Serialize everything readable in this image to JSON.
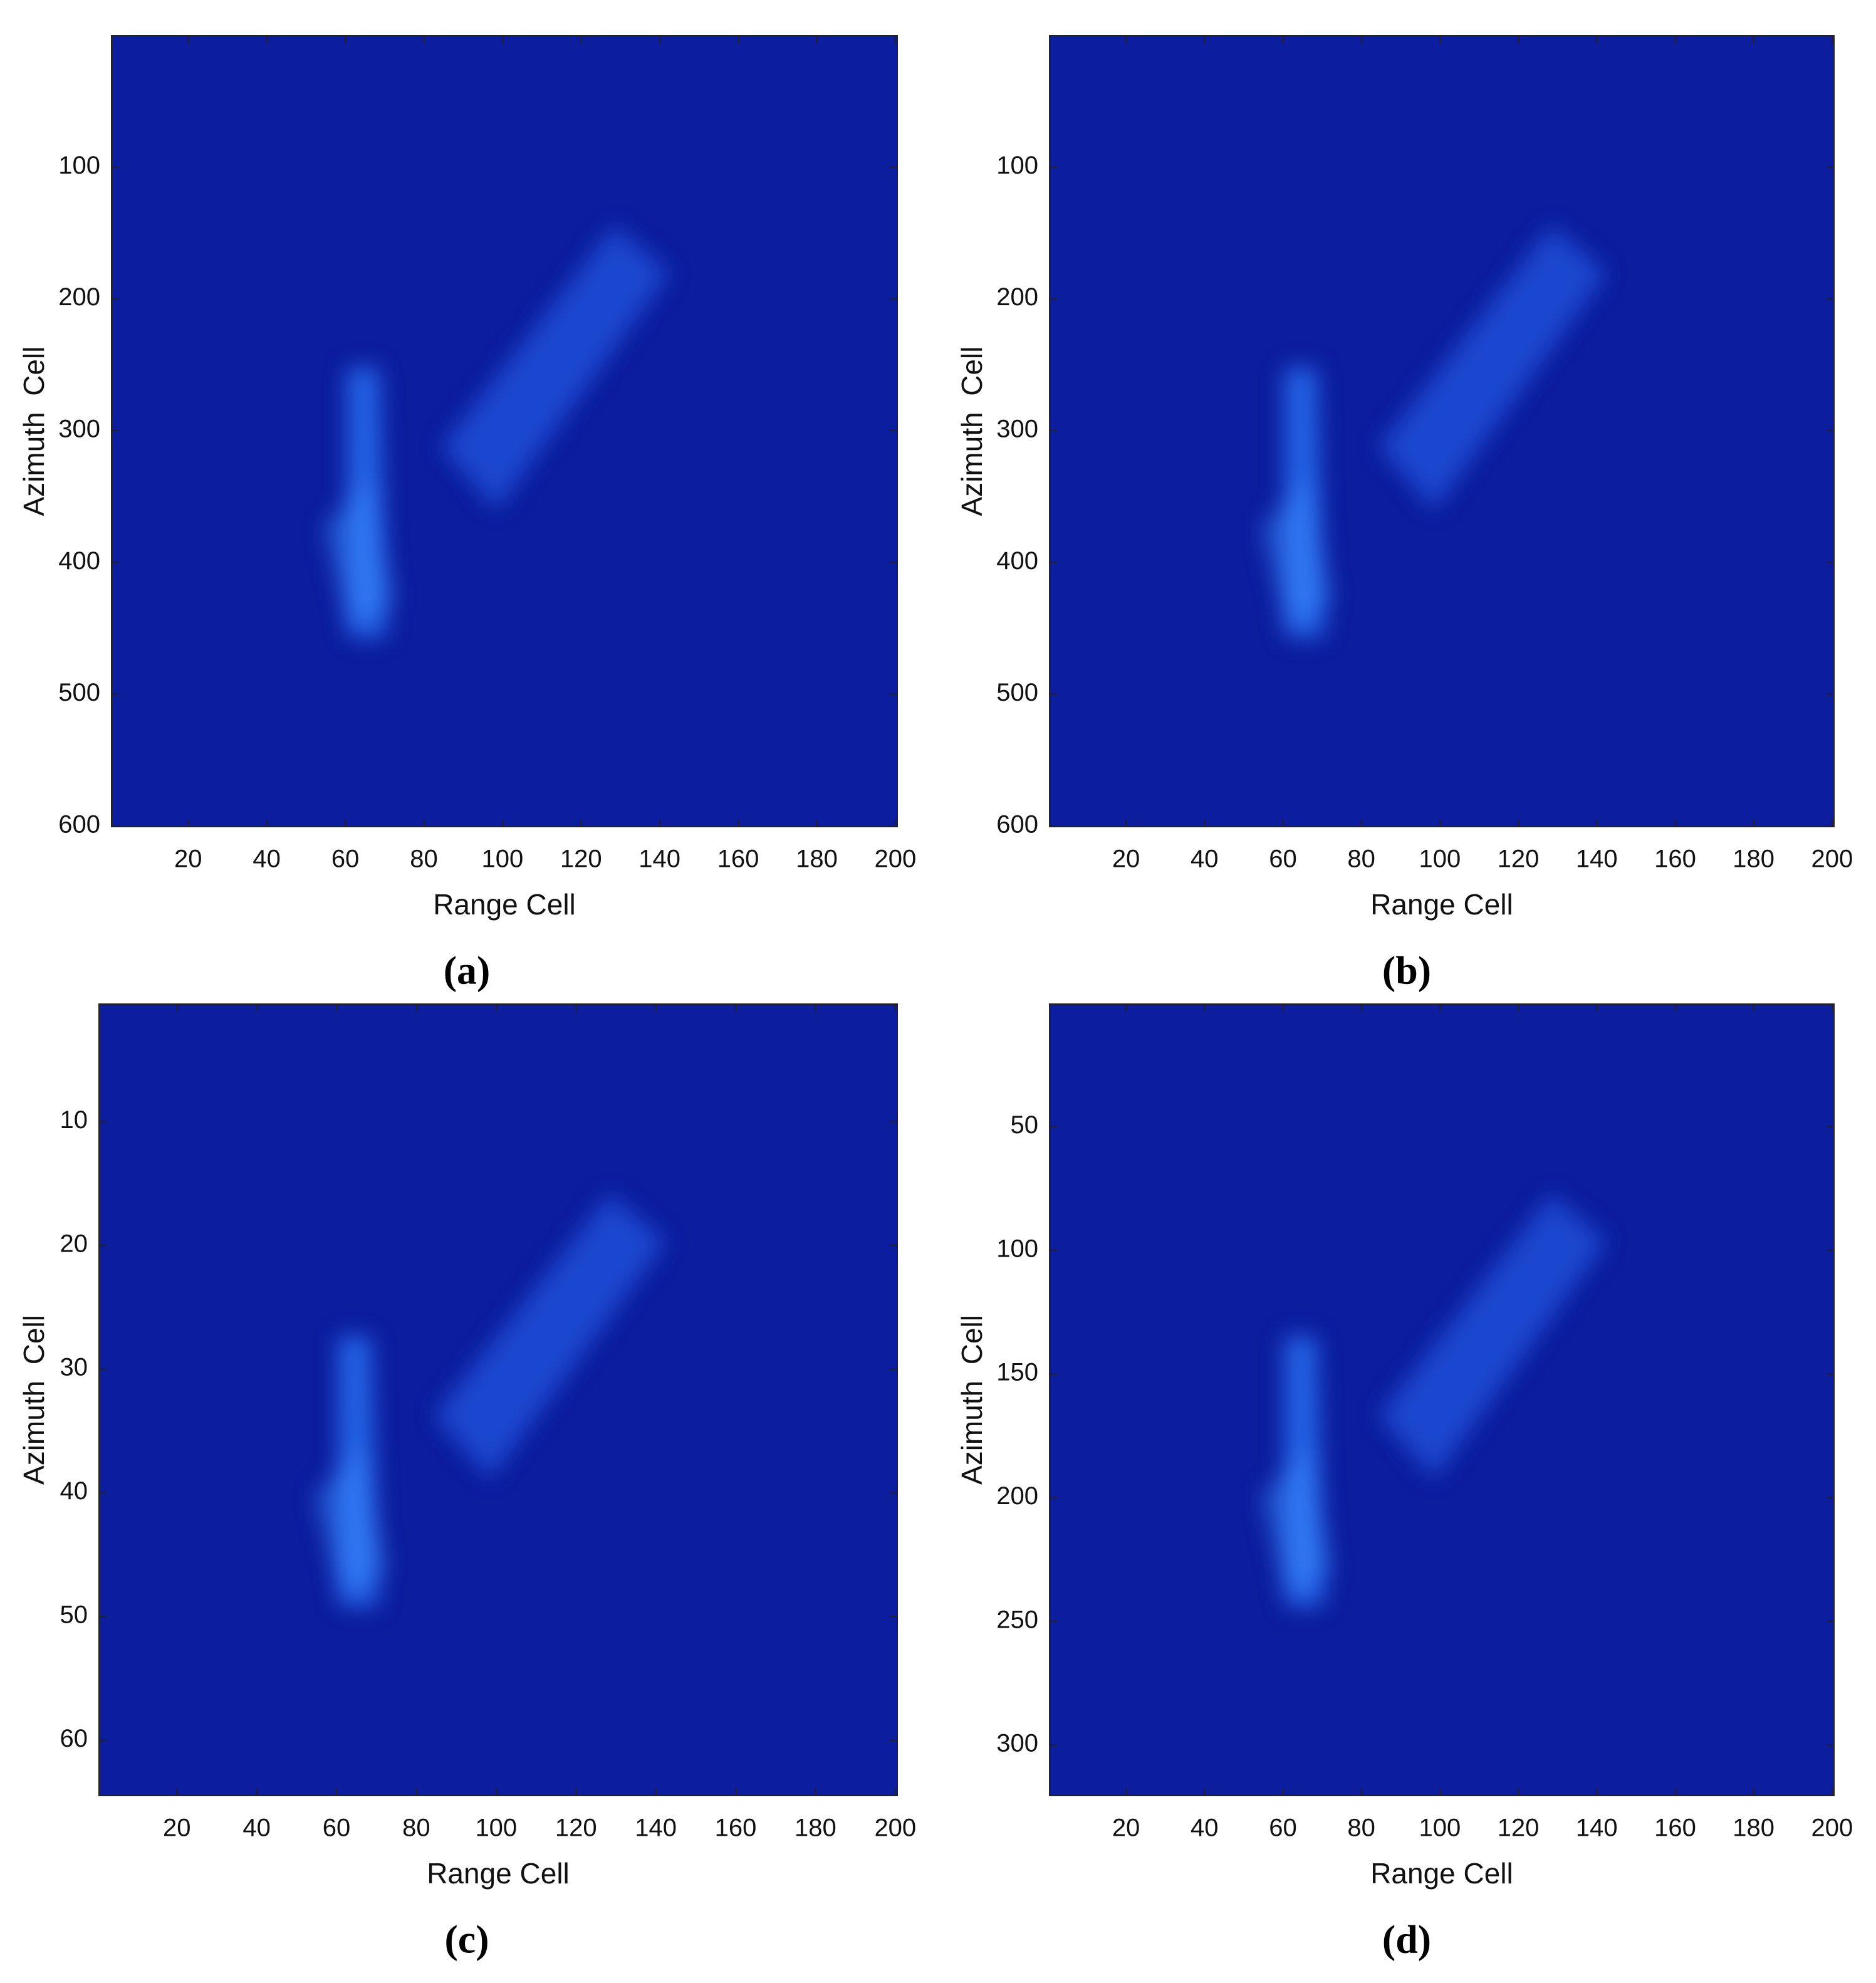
{
  "chart_data": [
    {
      "type": "heatmap",
      "caption": "(a)",
      "xlabel": "Range Cell",
      "ylabel": "Azimuth  Cell",
      "xlim": [
        0.5,
        200.5
      ],
      "xticks": [
        20,
        40,
        60,
        80,
        100,
        120,
        140,
        160,
        180,
        200
      ],
      "ylim": [
        0.5,
        600.5
      ],
      "yticks": [
        100,
        200,
        300,
        400,
        500,
        600
      ],
      "y_reversed": true,
      "color": "#0c1d9e"
    },
    {
      "type": "heatmap",
      "caption": "(b)",
      "xlabel": "Range Cell",
      "ylabel": "Azimuth  Cell",
      "xlim": [
        0.5,
        200.5
      ],
      "xticks": [
        20,
        40,
        60,
        80,
        100,
        120,
        140,
        160,
        180,
        200
      ],
      "ylim": [
        0.5,
        600.5
      ],
      "yticks": [
        100,
        200,
        300,
        400,
        500,
        600
      ],
      "y_reversed": true,
      "color": "#0c1d9e"
    },
    {
      "type": "heatmap",
      "caption": "(c)",
      "xlabel": "Range Cell",
      "ylabel": "Azimuth  Cell",
      "xlim": [
        0.5,
        200.5
      ],
      "xticks": [
        20,
        40,
        60,
        80,
        100,
        120,
        140,
        160,
        180,
        200
      ],
      "ylim": [
        0.5,
        64.5
      ],
      "yticks": [
        10,
        20,
        30,
        40,
        50,
        60
      ],
      "y_reversed": true,
      "color": "#0c1d9e"
    },
    {
      "type": "heatmap",
      "caption": "(d)",
      "xlabel": "Range Cell",
      "ylabel": "Azimuth  Cell",
      "xlim": [
        0.5,
        200.5
      ],
      "xticks": [
        20,
        40,
        60,
        80,
        100,
        120,
        140,
        160,
        180,
        200
      ],
      "ylim": [
        0.5,
        320.5
      ],
      "yticks": [
        50,
        100,
        150,
        200,
        250,
        300
      ],
      "y_reversed": true,
      "color": "#0c1d9e"
    }
  ]
}
